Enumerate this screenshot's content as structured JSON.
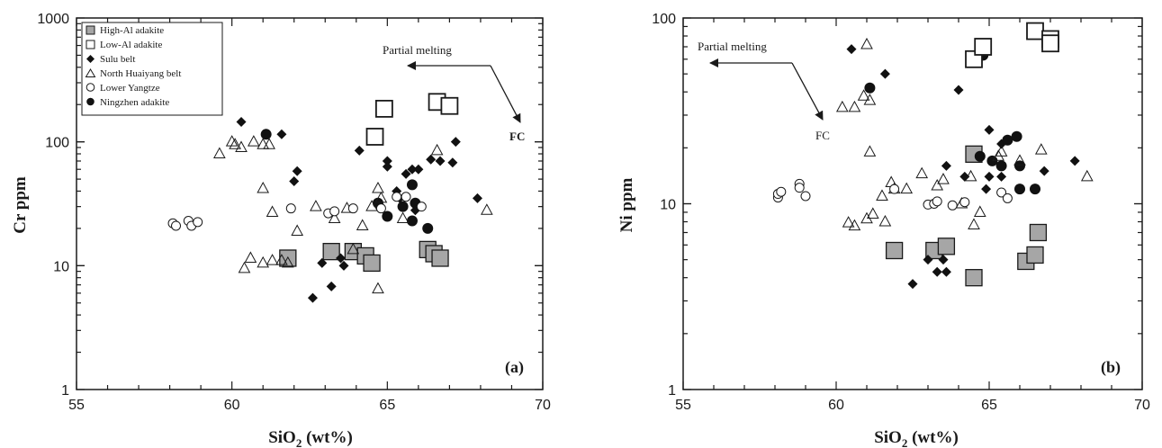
{
  "chart_data": [
    {
      "type": "scatter",
      "panel_label": "(a)",
      "xlabel": "SiO2 (wt%)",
      "ylabel": "Cr ppm",
      "xlim": [
        55,
        70
      ],
      "ylim": [
        1,
        1000
      ],
      "y_scale": "log",
      "x_ticks": [
        "55",
        "60",
        "65",
        "70"
      ],
      "y_ticks": [
        "1",
        "10",
        "100",
        "1000"
      ],
      "legend": {
        "placement": "top-left",
        "entries": [
          "High-Al adakite",
          "Low-Al adakite",
          "Sulu belt",
          "North Huaiyang belt",
          "Lower Yangtze",
          "Ningzhen adakite"
        ]
      },
      "annotations": [
        "Partial melting",
        "FC"
      ],
      "series": [
        {
          "name": "High-Al adakite",
          "marker": "filled-square",
          "points": [
            [
              61.8,
              11.5
            ],
            [
              63.2,
              13
            ],
            [
              63.9,
              13
            ],
            [
              64.3,
              12
            ],
            [
              64.5,
              10.5
            ],
            [
              66.3,
              13.5
            ],
            [
              66.5,
              12.5
            ],
            [
              66.7,
              11.5
            ]
          ]
        },
        {
          "name": "Low-Al adakite",
          "marker": "open-square",
          "points": [
            [
              64.6,
              110
            ],
            [
              64.9,
              185
            ],
            [
              66.6,
              210
            ],
            [
              67.0,
              195
            ]
          ]
        },
        {
          "name": "Sulu belt",
          "marker": "filled-diamond",
          "points": [
            [
              60.3,
              145
            ],
            [
              61.6,
              115
            ],
            [
              62.1,
              58
            ],
            [
              62.0,
              48
            ],
            [
              64.1,
              85
            ],
            [
              65.0,
              70
            ],
            [
              65.0,
              63
            ],
            [
              65.6,
              55
            ],
            [
              65.8,
              60
            ],
            [
              66.0,
              60
            ],
            [
              66.4,
              72
            ],
            [
              66.7,
              70
            ],
            [
              67.1,
              68
            ],
            [
              67.2,
              100
            ],
            [
              67.9,
              35
            ],
            [
              62.6,
              5.5
            ],
            [
              62.9,
              10.5
            ],
            [
              63.2,
              6.8
            ],
            [
              63.6,
              10
            ],
            [
              63.5,
              11.5
            ],
            [
              65.3,
              40
            ],
            [
              65.4,
              35
            ],
            [
              65.9,
              28
            ]
          ]
        },
        {
          "name": "North Huaiyang belt",
          "marker": "open-triangle",
          "points": [
            [
              59.6,
              80
            ],
            [
              60.0,
              100
            ],
            [
              60.1,
              95
            ],
            [
              60.3,
              90
            ],
            [
              60.7,
              100
            ],
            [
              61.0,
              95
            ],
            [
              61.2,
              95
            ],
            [
              61.0,
              42
            ],
            [
              61.3,
              27
            ],
            [
              62.1,
              19
            ],
            [
              62.7,
              30
            ],
            [
              63.3,
              24
            ],
            [
              63.7,
              29
            ],
            [
              63.9,
              13.5
            ],
            [
              64.2,
              21
            ],
            [
              64.5,
              30
            ],
            [
              64.7,
              42
            ],
            [
              64.8,
              35
            ],
            [
              66.6,
              85
            ],
            [
              68.2,
              28
            ],
            [
              60.4,
              9.5
            ],
            [
              60.6,
              11.5
            ],
            [
              61.0,
              10.5
            ],
            [
              61.3,
              11
            ],
            [
              61.6,
              11
            ],
            [
              61.8,
              10.5
            ],
            [
              64.7,
              6.5
            ],
            [
              65.5,
              24
            ]
          ]
        },
        {
          "name": "Lower Yangtze",
          "marker": "open-circle",
          "points": [
            [
              58.1,
              22
            ],
            [
              58.2,
              21
            ],
            [
              58.6,
              23
            ],
            [
              58.7,
              21
            ],
            [
              58.9,
              22.5
            ],
            [
              61.9,
              29
            ],
            [
              63.1,
              26.5
            ],
            [
              63.3,
              27.5
            ],
            [
              63.9,
              29
            ],
            [
              64.8,
              29
            ],
            [
              65.3,
              36
            ],
            [
              65.6,
              36
            ],
            [
              66.1,
              30
            ]
          ]
        },
        {
          "name": "Ningzhen adakite",
          "marker": "filled-circle",
          "points": [
            [
              61.1,
              115
            ],
            [
              64.7,
              32
            ],
            [
              65.0,
              25
            ],
            [
              65.8,
              45
            ],
            [
              65.9,
              32
            ],
            [
              65.8,
              23
            ],
            [
              66.3,
              20
            ],
            [
              65.5,
              30
            ]
          ]
        }
      ]
    },
    {
      "type": "scatter",
      "panel_label": "(b)",
      "xlabel": "SiO2 (wt%)",
      "ylabel": "Ni ppm",
      "xlim": [
        55,
        70
      ],
      "ylim": [
        1,
        100
      ],
      "y_scale": "log",
      "x_ticks": [
        "55",
        "60",
        "65",
        "70"
      ],
      "y_ticks": [
        "1",
        "10",
        "100"
      ],
      "annotations": [
        "Partial melting",
        "FC"
      ],
      "series": [
        {
          "name": "High-Al adakite",
          "marker": "filled-square",
          "points": [
            [
              61.9,
              5.6
            ],
            [
              63.2,
              5.6
            ],
            [
              63.6,
              5.9
            ],
            [
              64.5,
              4.0
            ],
            [
              64.5,
              18.5
            ],
            [
              66.2,
              4.9
            ],
            [
              66.5,
              5.3
            ],
            [
              66.6,
              7.0
            ]
          ]
        },
        {
          "name": "Low-Al adakite",
          "marker": "open-square",
          "points": [
            [
              64.5,
              60
            ],
            [
              64.8,
              70
            ],
            [
              66.5,
              85
            ],
            [
              67.0,
              77
            ],
            [
              67.0,
              73
            ]
          ]
        },
        {
          "name": "Sulu belt",
          "marker": "filled-diamond",
          "points": [
            [
              60.5,
              68
            ],
            [
              61.6,
              50
            ],
            [
              64.0,
              41
            ],
            [
              63.6,
              16
            ],
            [
              64.2,
              14
            ],
            [
              64.9,
              12
            ],
            [
              65.0,
              25
            ],
            [
              65.0,
              14
            ],
            [
              65.4,
              14
            ],
            [
              65.4,
              21
            ],
            [
              66.8,
              15
            ],
            [
              67.8,
              17
            ],
            [
              62.5,
              3.7
            ],
            [
              63.0,
              5.0
            ],
            [
              63.3,
              4.3
            ],
            [
              63.6,
              4.3
            ],
            [
              63.5,
              5.0
            ]
          ]
        },
        {
          "name": "North Huaiyang belt",
          "marker": "open-triangle",
          "points": [
            [
              60.2,
              33
            ],
            [
              60.6,
              33
            ],
            [
              60.9,
              38
            ],
            [
              61.0,
              72
            ],
            [
              61.1,
              36
            ],
            [
              61.1,
              19
            ],
            [
              61.5,
              11
            ],
            [
              61.8,
              13
            ],
            [
              61.9,
              12
            ],
            [
              62.3,
              12
            ],
            [
              62.8,
              14.5
            ],
            [
              63.3,
              12.5
            ],
            [
              63.5,
              13.5
            ],
            [
              64.1,
              10
            ],
            [
              64.4,
              14
            ],
            [
              64.7,
              9
            ],
            [
              65.3,
              18
            ],
            [
              65.4,
              19
            ],
            [
              66.0,
              17
            ],
            [
              66.7,
              19.5
            ],
            [
              68.2,
              14
            ],
            [
              60.4,
              7.9
            ],
            [
              60.6,
              7.6
            ],
            [
              61.0,
              8.3
            ],
            [
              61.2,
              8.8
            ],
            [
              61.6,
              8.0
            ],
            [
              64.5,
              7.7
            ]
          ]
        },
        {
          "name": "Lower Yangtze",
          "marker": "open-circle",
          "points": [
            [
              58.1,
              10.8
            ],
            [
              58.1,
              11.3
            ],
            [
              58.2,
              11.6
            ],
            [
              58.8,
              12.8
            ],
            [
              58.8,
              12.2
            ],
            [
              59.0,
              11.0
            ],
            [
              61.9,
              12.0
            ],
            [
              63.0,
              9.9
            ],
            [
              63.2,
              10.0
            ],
            [
              63.3,
              10.3
            ],
            [
              63.8,
              9.8
            ],
            [
              64.2,
              10.2
            ],
            [
              65.4,
              11.5
            ],
            [
              65.6,
              10.7
            ]
          ]
        },
        {
          "name": "Ningzhen adakite",
          "marker": "filled-circle",
          "points": [
            [
              61.1,
              42
            ],
            [
              64.8,
              63
            ],
            [
              64.7,
              18
            ],
            [
              65.1,
              17
            ],
            [
              65.4,
              16
            ],
            [
              65.6,
              22
            ],
            [
              65.9,
              23
            ],
            [
              66.0,
              16
            ],
            [
              66.0,
              12
            ],
            [
              66.5,
              12
            ]
          ]
        }
      ]
    }
  ]
}
